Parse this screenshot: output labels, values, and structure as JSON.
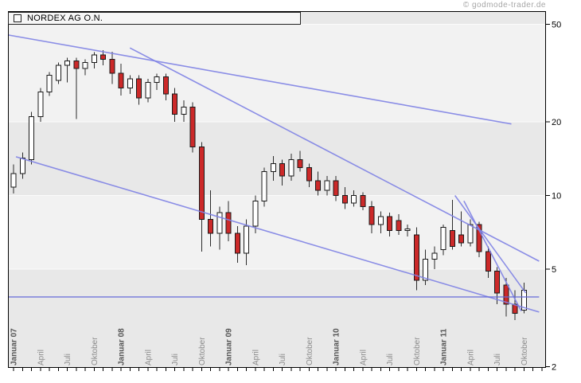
{
  "watermark": "© godmode-trader.de",
  "legend": {
    "title": "NORDEX AG O.N."
  },
  "colors": {
    "band_light": "#f2f2f2",
    "band_dark": "#e8e8e8",
    "grid": "#fbfbfb",
    "frame": "#000000",
    "candle_up_fill": "#ffffff",
    "candle_down_fill": "#cc2929",
    "candle_stroke": "#1a1a1a",
    "wick": "#2b2b2b",
    "trendline": "#7e82e4",
    "horizontal_line": "#6468d8",
    "x_label": "#8c8c8c",
    "x_label_bold": "#555555",
    "y_label": "#000000"
  },
  "chart_data": {
    "type": "candlestick",
    "title": "NORDEX AG O.N.",
    "timeframe": "monthly",
    "y_axis": {
      "scale": "log",
      "side": "right",
      "ticks": [
        50,
        20,
        10,
        5,
        2
      ],
      "min": 2,
      "max": 52
    },
    "x_axis": {
      "unit": "month",
      "label_every_months": 3,
      "labels": [
        "Januar 07",
        "April",
        "Juli",
        "Oktober",
        "Januar 08",
        "April",
        "Juli",
        "Oktober",
        "Januar 09",
        "April",
        "Juli",
        "Oktober",
        "Januar 10",
        "April",
        "Juli",
        "Oktober",
        "Januar 11",
        "April",
        "Juli",
        "Oktober"
      ],
      "bold_prefix": "Januar"
    },
    "candles": {
      "columns": [
        "month",
        "open",
        "high",
        "low",
        "close"
      ],
      "rows": [
        [
          "2007-01",
          10.8,
          13.4,
          10.2,
          12.3
        ],
        [
          "2007-02",
          12.3,
          15.0,
          11.7,
          14.2
        ],
        [
          "2007-03",
          14.0,
          22.0,
          13.4,
          21.0
        ],
        [
          "2007-04",
          21.0,
          27.5,
          20.0,
          26.5
        ],
        [
          "2007-05",
          26.5,
          32.0,
          25.5,
          31.0
        ],
        [
          "2007-06",
          29.5,
          35.0,
          28.5,
          34.0
        ],
        [
          "2007-07",
          34.0,
          36.5,
          29.0,
          35.5
        ],
        [
          "2007-08",
          35.5,
          36.5,
          20.5,
          33.0
        ],
        [
          "2007-09",
          33.0,
          36.0,
          31.0,
          35.0
        ],
        [
          "2007-10",
          35.0,
          38.5,
          33.0,
          37.5
        ],
        [
          "2007-11",
          37.5,
          39.3,
          34.0,
          36.0
        ],
        [
          "2007-12",
          36.0,
          38.7,
          28.6,
          31.6
        ],
        [
          "2008-01",
          31.6,
          34.5,
          25.6,
          27.5
        ],
        [
          "2008-02",
          27.5,
          31.0,
          26.0,
          30.0
        ],
        [
          "2008-03",
          30.0,
          31.0,
          23.5,
          25.0
        ],
        [
          "2008-04",
          25.0,
          30.0,
          24.0,
          29.0
        ],
        [
          "2008-05",
          29.0,
          31.5,
          27.0,
          30.5
        ],
        [
          "2008-06",
          30.5,
          31.5,
          24.5,
          26.0
        ],
        [
          "2008-07",
          26.0,
          27.5,
          20.0,
          21.5
        ],
        [
          "2008-08",
          21.5,
          24.5,
          20.0,
          23.0
        ],
        [
          "2008-09",
          23.0,
          24.0,
          15.0,
          15.8
        ],
        [
          "2008-10",
          15.8,
          16.5,
          5.9,
          8.0
        ],
        [
          "2008-11",
          8.0,
          10.5,
          6.2,
          7.0
        ],
        [
          "2008-12",
          7.0,
          9.0,
          6.0,
          8.5
        ],
        [
          "2009-01",
          8.5,
          9.5,
          6.5,
          7.0
        ],
        [
          "2009-02",
          7.0,
          7.5,
          5.3,
          5.8
        ],
        [
          "2009-03",
          5.8,
          8.0,
          5.2,
          7.5
        ],
        [
          "2009-04",
          7.5,
          10.0,
          7.0,
          9.5
        ],
        [
          "2009-05",
          9.5,
          13.0,
          9.0,
          12.5
        ],
        [
          "2009-06",
          12.5,
          14.5,
          11.5,
          13.5
        ],
        [
          "2009-07",
          13.5,
          14.0,
          11.0,
          12.0
        ],
        [
          "2009-08",
          12.0,
          14.8,
          11.5,
          14.0
        ],
        [
          "2009-09",
          14.0,
          15.2,
          12.5,
          13.0
        ],
        [
          "2009-10",
          13.0,
          13.5,
          10.8,
          11.5
        ],
        [
          "2009-11",
          11.5,
          12.5,
          10.0,
          10.5
        ],
        [
          "2009-12",
          10.5,
          12.0,
          10.0,
          11.5
        ],
        [
          "2010-01",
          11.5,
          12.0,
          9.5,
          10.0
        ],
        [
          "2010-02",
          10.0,
          10.8,
          8.8,
          9.3
        ],
        [
          "2010-03",
          9.3,
          10.5,
          9.0,
          10.0
        ],
        [
          "2010-04",
          10.0,
          10.3,
          8.7,
          9.0
        ],
        [
          "2010-05",
          9.0,
          9.5,
          7.0,
          7.6
        ],
        [
          "2010-06",
          7.6,
          8.6,
          7.0,
          8.2
        ],
        [
          "2010-07",
          8.2,
          8.5,
          6.8,
          7.2
        ],
        [
          "2010-08",
          7.9,
          8.4,
          6.9,
          7.2
        ],
        [
          "2010-09",
          7.2,
          7.6,
          6.8,
          7.3
        ],
        [
          "2010-10",
          6.9,
          7.4,
          4.1,
          4.5
        ],
        [
          "2010-11",
          4.5,
          6.0,
          4.3,
          5.5
        ],
        [
          "2010-12",
          5.5,
          6.2,
          5.0,
          5.8
        ],
        [
          "2011-01",
          6.0,
          7.6,
          5.7,
          7.4
        ],
        [
          "2011-02",
          7.2,
          9.6,
          6.0,
          6.2
        ],
        [
          "2011-03",
          6.9,
          8.6,
          6.2,
          6.4
        ],
        [
          "2011-04",
          6.4,
          8.0,
          6.2,
          7.6
        ],
        [
          "2011-05",
          7.6,
          7.8,
          5.6,
          5.9
        ],
        [
          "2011-06",
          5.9,
          6.2,
          4.6,
          4.9
        ],
        [
          "2011-07",
          4.9,
          5.1,
          3.6,
          4.0
        ],
        [
          "2011-08",
          4.3,
          4.6,
          3.2,
          3.6
        ],
        [
          "2011-09",
          3.6,
          4.1,
          3.1,
          3.3
        ],
        [
          "2011-10",
          3.4,
          4.4,
          3.3,
          4.1
        ]
      ]
    },
    "trendlines": [
      {
        "name": "long-resistance-line",
        "m1": -0.62,
        "v1": 45.3,
        "m2": 55.6,
        "v2": 19.6
      },
      {
        "name": "main-downtrend-line",
        "m1": 13.0,
        "v1": 40.1,
        "m2": 58.7,
        "v2": 5.39
      },
      {
        "name": "lower-channel-line",
        "m1": 0.27,
        "v1": 14.4,
        "m2": 58.7,
        "v2": 3.34
      },
      {
        "name": "wedge-upper-line",
        "m1": 49.3,
        "v1": 10.0,
        "m2": 57.2,
        "v2": 4.0
      },
      {
        "name": "wedge-lower-line",
        "m1": 50.3,
        "v1": 9.5,
        "m2": 56.7,
        "v2": 3.37
      },
      {
        "name": "horizontal-support-line",
        "m1": -0.62,
        "v1": 3.85,
        "m2": 58.7,
        "v2": 3.85,
        "horizontal": true
      }
    ]
  }
}
